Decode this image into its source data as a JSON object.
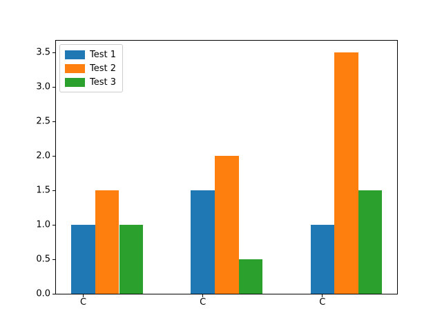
{
  "figure": {
    "background": "#ffffff",
    "spine_color": "#000000"
  },
  "chart_data": {
    "type": "bar",
    "title": "",
    "xlabel": "",
    "ylabel": "",
    "categories": [
      "C",
      "C",
      "C"
    ],
    "series": [
      {
        "name": "Test 1",
        "color": "#1f77b4",
        "values": [
          1.0,
          1.5,
          1.0
        ]
      },
      {
        "name": "Test 2",
        "color": "#ff7f0e",
        "values": [
          1.5,
          2.0,
          3.5
        ]
      },
      {
        "name": "Test 3",
        "color": "#2ca02c",
        "values": [
          1.0,
          0.5,
          1.5
        ]
      }
    ],
    "yticks": [
      "0.0",
      "0.5",
      "1.0",
      "1.5",
      "2.0",
      "2.5",
      "3.0",
      "3.5"
    ],
    "ylim": [
      0,
      3.675
    ],
    "grid": false,
    "legend_position": "upper left"
  }
}
